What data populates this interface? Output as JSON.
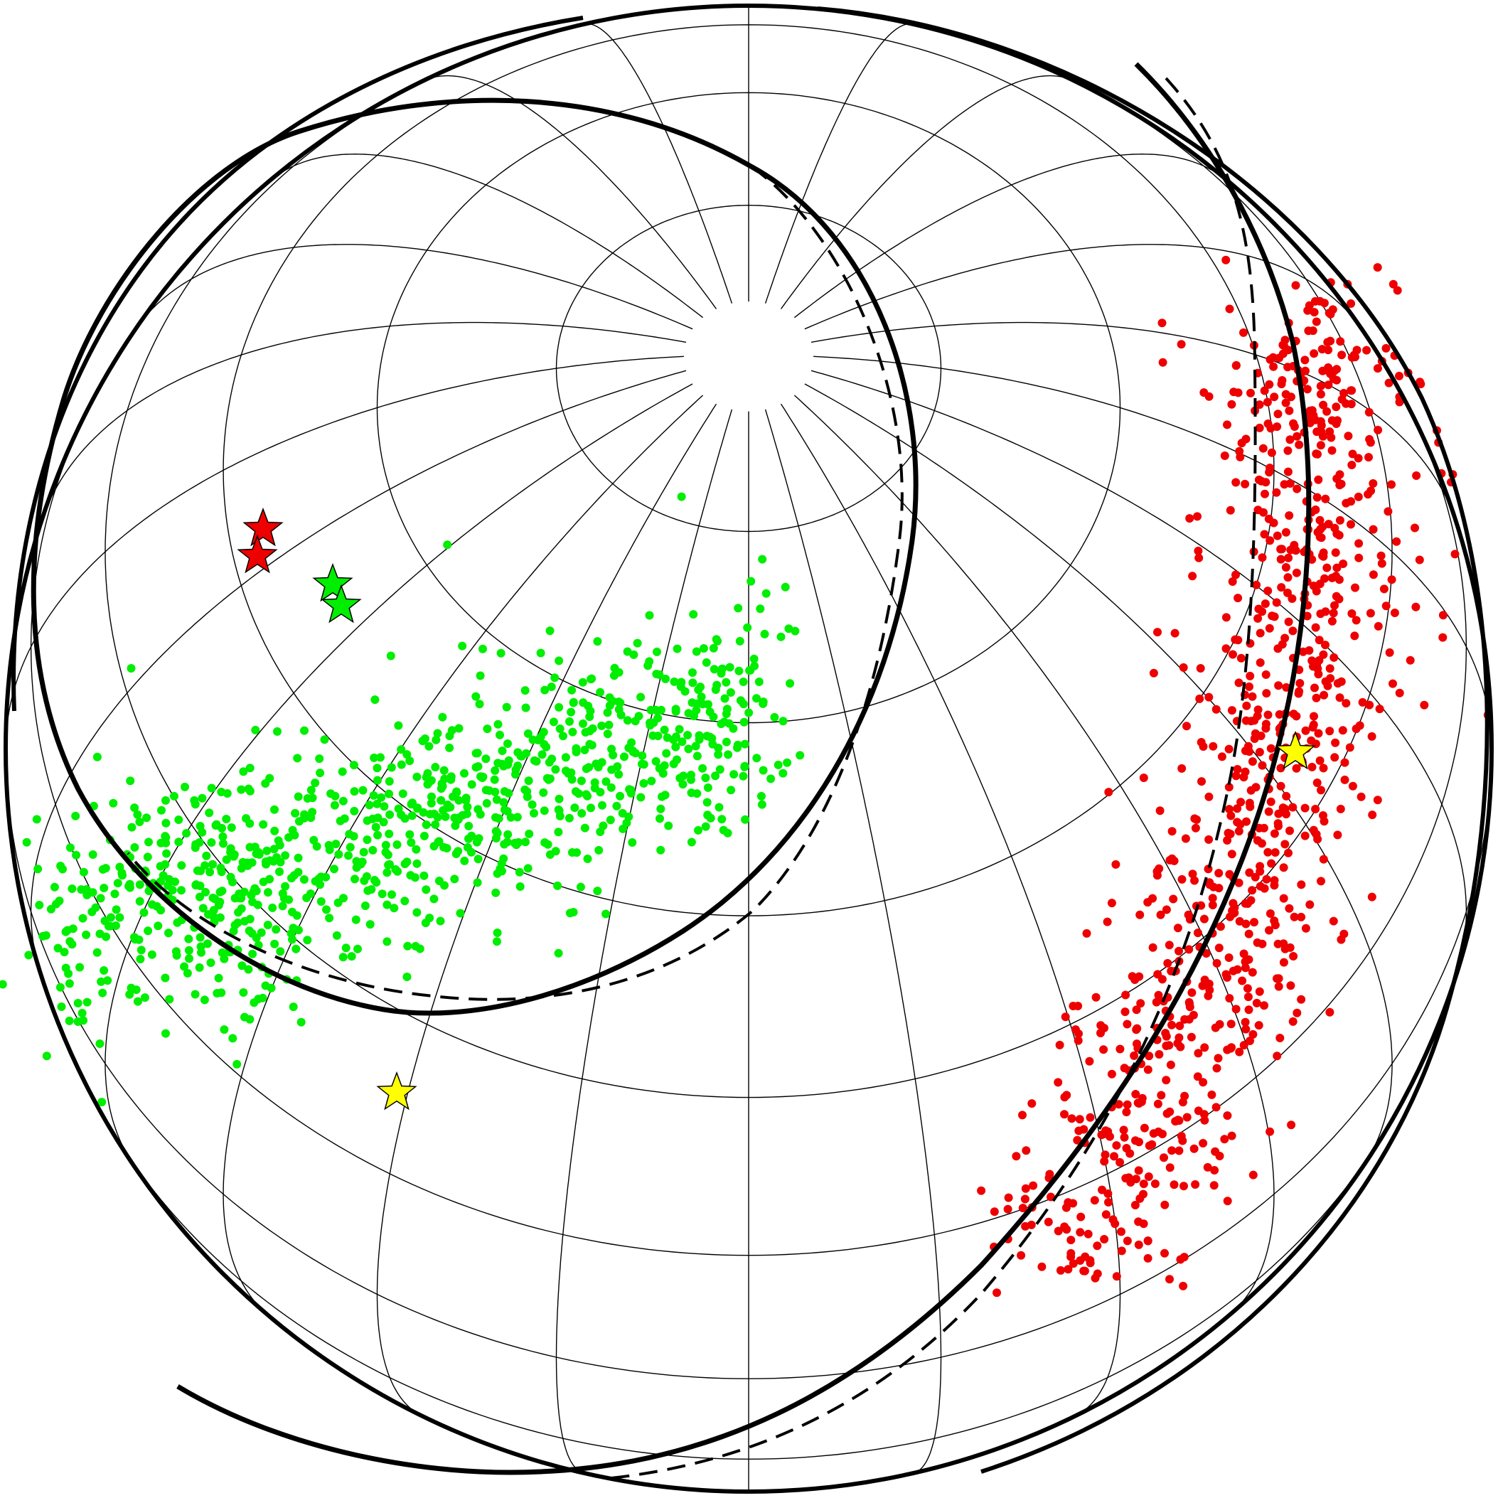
{
  "figure": {
    "projection": "orthographic",
    "graticule": {
      "parallel_step_deg": 15,
      "meridian_step_deg": 15
    },
    "colors": {
      "graticule": "#000000",
      "outline": "#000000",
      "great_circle": "#000000",
      "cluster_a": "#00ee00",
      "cluster_b": "#ee0000",
      "mean_star": "#ffff00"
    },
    "great_circles": [
      {
        "name": "circle-1",
        "style": "solid"
      },
      {
        "name": "circle-1-alt",
        "style": "dashed"
      },
      {
        "name": "circle-2",
        "style": "solid"
      },
      {
        "name": "circle-2-alt",
        "style": "dashed"
      }
    ],
    "clusters": [
      {
        "name": "green-cluster",
        "color": "#00ee00",
        "point_count": 950
      },
      {
        "name": "red-cluster",
        "color": "#ee0000",
        "point_count": 900
      }
    ],
    "stars": [
      {
        "name": "yellow-star-left",
        "color": "#ffff00"
      },
      {
        "name": "yellow-star-right",
        "color": "#ffff00"
      },
      {
        "name": "red-star-1",
        "color": "#ee0000"
      },
      {
        "name": "red-star-2",
        "color": "#ee0000"
      },
      {
        "name": "green-star-1",
        "color": "#00ee00"
      },
      {
        "name": "green-star-2",
        "color": "#00ee00"
      }
    ]
  }
}
